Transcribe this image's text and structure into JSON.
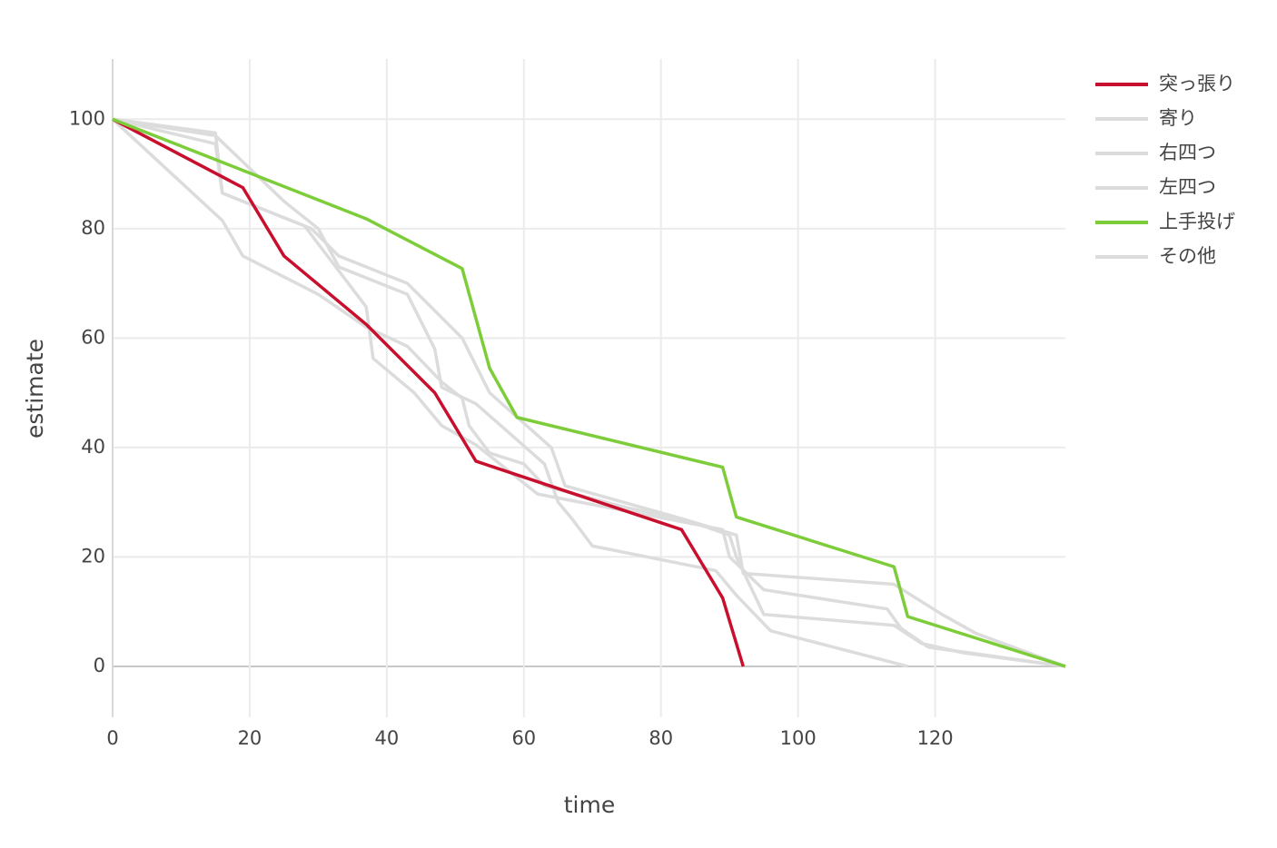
{
  "chart_data": {
    "type": "line",
    "xlabel": "time",
    "ylabel": "estimate",
    "xlim": [
      0,
      139
    ],
    "ylim": [
      -9.3,
      111
    ],
    "xticks": [
      0,
      20,
      40,
      60,
      80,
      100,
      120
    ],
    "yticks": [
      0,
      20,
      40,
      60,
      80,
      100
    ],
    "grid": true,
    "legend": "right",
    "series": [
      {
        "name": "突っ張り",
        "color": "#c8102e",
        "x": [
          0,
          19,
          25,
          37,
          47,
          53,
          83,
          89,
          92
        ],
        "values": [
          100,
          87.5,
          75,
          62.5,
          50,
          37.5,
          25,
          12.5,
          0
        ]
      },
      {
        "name": "寄り",
        "color": "#dcdcdc",
        "x": [
          0,
          15,
          16,
          29,
          33,
          43,
          51,
          55,
          64,
          66,
          83,
          91,
          92,
          114,
          121,
          126,
          139
        ],
        "values": [
          100,
          97.5,
          86.5,
          80,
          75,
          70,
          60,
          50,
          40,
          33,
          27,
          24,
          17,
          15,
          9.5,
          6,
          0
        ]
      },
      {
        "name": "右四つ",
        "color": "#dcdcdc",
        "x": [
          0,
          15,
          25,
          30,
          33,
          43,
          47,
          48,
          53,
          63,
          65,
          67,
          70,
          80,
          88,
          91,
          96,
          116
        ],
        "values": [
          100,
          97,
          85,
          80,
          73,
          68,
          58,
          51,
          48,
          37,
          30,
          27,
          22,
          19.5,
          17.5,
          13,
          6.5,
          0
        ]
      },
      {
        "name": "左四つ",
        "color": "#dcdcdc",
        "x": [
          0,
          15,
          16,
          20,
          28,
          37,
          38,
          44,
          48,
          53,
          62,
          89,
          90,
          95,
          113,
          115,
          119,
          126,
          139
        ],
        "values": [
          100,
          95.5,
          86.5,
          84.5,
          80.5,
          65.7,
          56.3,
          50,
          44,
          40.5,
          31.5,
          25,
          20,
          14,
          10.5,
          7,
          3.5,
          2.3,
          0
        ]
      },
      {
        "name": "上手投げ",
        "color": "#7dcd3a",
        "x": [
          0,
          37,
          51,
          55,
          59,
          89,
          91,
          114,
          116,
          139
        ],
        "values": [
          100,
          81.8,
          72.7,
          54.5,
          45.5,
          36.4,
          27.3,
          18.2,
          9.1,
          0
        ]
      },
      {
        "name": "その他",
        "color": "#dcdcdc",
        "x": [
          0,
          16,
          19,
          30,
          37,
          43,
          48,
          51,
          52,
          55,
          60,
          63,
          75,
          83,
          90,
          91,
          95,
          114,
          118,
          124,
          139
        ],
        "values": [
          100,
          81.5,
          75,
          68,
          62,
          58.5,
          52,
          49,
          44,
          39,
          37,
          33,
          29,
          27,
          24,
          20,
          9.5,
          7.5,
          4.2,
          2.5,
          0
        ]
      }
    ]
  }
}
